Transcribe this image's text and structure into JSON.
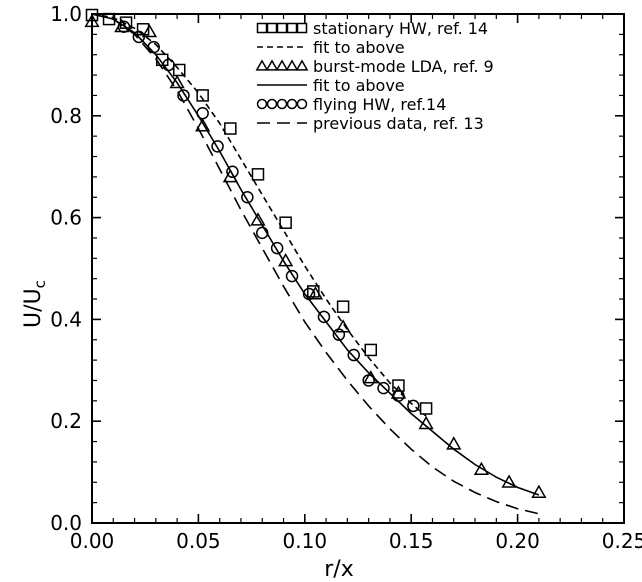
{
  "chart_data": {
    "type": "scatter",
    "title": "",
    "xlabel": "r/x",
    "ylabel": "U/U",
    "ylabel_subscript": "c",
    "xlim": [
      0.0,
      0.25
    ],
    "ylim": [
      0.0,
      1.0
    ],
    "xticks": [
      "0.00",
      "0.05",
      "0.10",
      "0.15",
      "0.20",
      "0.25"
    ],
    "yticks": [
      "0.0",
      "0.2",
      "0.4",
      "0.6",
      "0.8",
      "1.0"
    ],
    "grid": false,
    "legend_position": "top-right",
    "series": [
      {
        "name": "stationary HW, ref. 14",
        "kind": "markers",
        "marker": "square",
        "x": [
          0.0,
          0.008,
          0.016,
          0.024,
          0.033,
          0.041,
          0.052,
          0.065,
          0.078,
          0.091,
          0.104,
          0.118,
          0.131,
          0.144,
          0.157
        ],
        "y": [
          0.998,
          0.99,
          0.983,
          0.97,
          0.91,
          0.89,
          0.84,
          0.775,
          0.685,
          0.59,
          0.455,
          0.425,
          0.34,
          0.27,
          0.225
        ]
      },
      {
        "name": "fit to above",
        "kind": "line",
        "dash": "short",
        "x": [
          0.0,
          0.01,
          0.02,
          0.03,
          0.04,
          0.05,
          0.06,
          0.07,
          0.08,
          0.09,
          0.1,
          0.11,
          0.12,
          0.13,
          0.14,
          0.15,
          0.157
        ],
        "y": [
          1.0,
          0.993,
          0.972,
          0.94,
          0.895,
          0.845,
          0.785,
          0.715,
          0.645,
          0.575,
          0.505,
          0.44,
          0.38,
          0.325,
          0.275,
          0.235,
          0.21
        ]
      },
      {
        "name": "burst-mode LDA, ref. 9",
        "kind": "markers",
        "marker": "triangle",
        "x": [
          0.0,
          0.014,
          0.027,
          0.04,
          0.052,
          0.065,
          0.078,
          0.091,
          0.105,
          0.118,
          0.131,
          0.144,
          0.157,
          0.17,
          0.183,
          0.196,
          0.21
        ],
        "y": [
          0.985,
          0.975,
          0.965,
          0.865,
          0.78,
          0.68,
          0.595,
          0.515,
          0.45,
          0.385,
          0.285,
          0.255,
          0.195,
          0.155,
          0.105,
          0.08,
          0.06
        ]
      },
      {
        "name": "fit to above",
        "kind": "line",
        "dash": "solid",
        "x": [
          0.0,
          0.01,
          0.02,
          0.03,
          0.04,
          0.05,
          0.06,
          0.07,
          0.08,
          0.09,
          0.1,
          0.11,
          0.12,
          0.13,
          0.14,
          0.15,
          0.16,
          0.17,
          0.18,
          0.19,
          0.2,
          0.21
        ],
        "y": [
          1.0,
          0.99,
          0.963,
          0.92,
          0.865,
          0.8,
          0.73,
          0.655,
          0.585,
          0.515,
          0.45,
          0.395,
          0.34,
          0.295,
          0.255,
          0.215,
          0.18,
          0.145,
          0.115,
          0.09,
          0.07,
          0.055
        ]
      },
      {
        "name": "flying HW, ref.14",
        "kind": "markers",
        "marker": "circle",
        "x": [
          0.015,
          0.022,
          0.029,
          0.036,
          0.043,
          0.052,
          0.059,
          0.066,
          0.073,
          0.08,
          0.087,
          0.094,
          0.102,
          0.109,
          0.116,
          0.123,
          0.13,
          0.137,
          0.144,
          0.151
        ],
        "y": [
          0.975,
          0.955,
          0.935,
          0.9,
          0.84,
          0.805,
          0.74,
          0.69,
          0.64,
          0.57,
          0.54,
          0.485,
          0.45,
          0.405,
          0.37,
          0.33,
          0.28,
          0.265,
          0.25,
          0.23
        ]
      },
      {
        "name": "previous data, ref. 13",
        "kind": "line",
        "dash": "long",
        "x": [
          0.0,
          0.01,
          0.02,
          0.03,
          0.04,
          0.05,
          0.06,
          0.07,
          0.08,
          0.09,
          0.1,
          0.11,
          0.12,
          0.13,
          0.14,
          0.15,
          0.16,
          0.17,
          0.18,
          0.19,
          0.2,
          0.21
        ],
        "y": [
          1.0,
          0.99,
          0.96,
          0.912,
          0.85,
          0.775,
          0.695,
          0.615,
          0.54,
          0.465,
          0.395,
          0.335,
          0.28,
          0.23,
          0.185,
          0.145,
          0.11,
          0.082,
          0.06,
          0.042,
          0.028,
          0.018
        ]
      }
    ]
  }
}
